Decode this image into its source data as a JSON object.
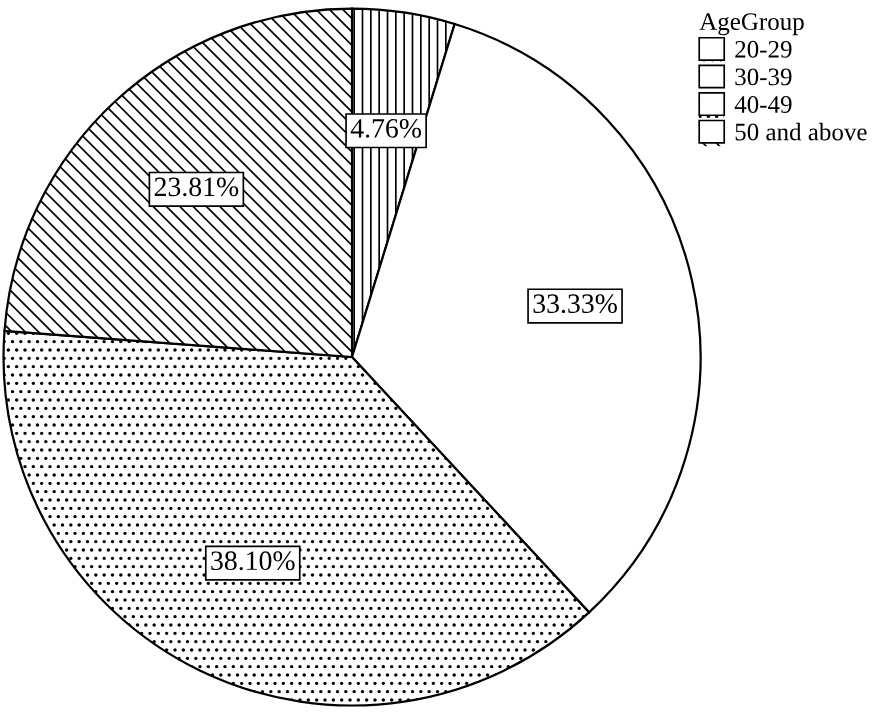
{
  "chart_data": {
    "type": "pie",
    "legend_title": "AgeGroup",
    "categories": [
      "20-29",
      "30-39",
      "40-49",
      "50 and above"
    ],
    "values": [
      4.76,
      33.33,
      38.1,
      23.81
    ],
    "value_labels": [
      "4.76%",
      "33.33%",
      "38.10%",
      "23.81%"
    ],
    "colors": [
      "#ffffff",
      "#ffffff",
      "#ffffff",
      "#ffffff"
    ],
    "legend": "top right"
  }
}
